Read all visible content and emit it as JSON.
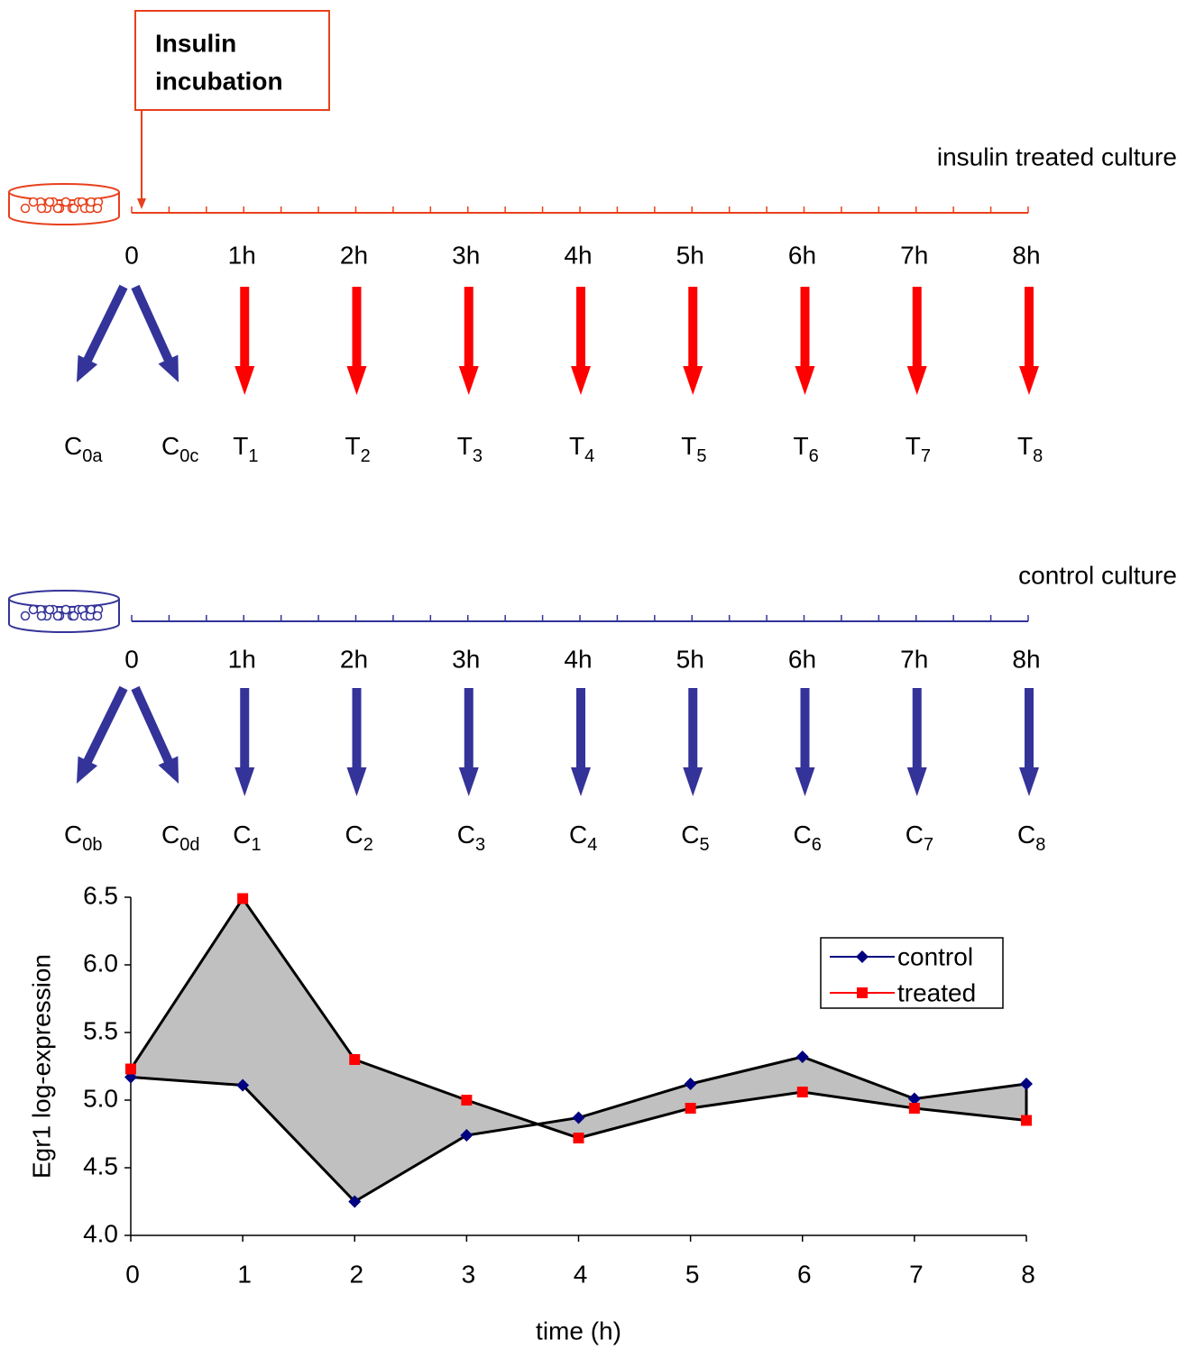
{
  "insulin_box": {
    "lines": [
      "Insulin",
      "incubation"
    ]
  },
  "treated": {
    "label": "insulin treated culture",
    "times": [
      "0",
      "1h",
      "2h",
      "3h",
      "4h",
      "5h",
      "6h",
      "7h",
      "8h"
    ],
    "samples": [
      {
        "base": "C",
        "sub": "0a"
      },
      {
        "base": "C",
        "sub": "0c"
      },
      {
        "base": "T",
        "sub": "1"
      },
      {
        "base": "T",
        "sub": "2"
      },
      {
        "base": "T",
        "sub": "3"
      },
      {
        "base": "T",
        "sub": "4"
      },
      {
        "base": "T",
        "sub": "5"
      },
      {
        "base": "T",
        "sub": "6"
      },
      {
        "base": "T",
        "sub": "7"
      },
      {
        "base": "T",
        "sub": "8"
      }
    ]
  },
  "control": {
    "label": "control culture",
    "times": [
      "0",
      "1h",
      "2h",
      "3h",
      "4h",
      "5h",
      "6h",
      "7h",
      "8h"
    ],
    "samples": [
      {
        "base": "C",
        "sub": "0b"
      },
      {
        "base": "C",
        "sub": "0d"
      },
      {
        "base": "C",
        "sub": "1"
      },
      {
        "base": "C",
        "sub": "2"
      },
      {
        "base": "C",
        "sub": "3"
      },
      {
        "base": "C",
        "sub": "4"
      },
      {
        "base": "C",
        "sub": "5"
      },
      {
        "base": "C",
        "sub": "6"
      },
      {
        "base": "C",
        "sub": "7"
      },
      {
        "base": "C",
        "sub": "8"
      }
    ]
  },
  "chart_data": {
    "type": "line",
    "x_label": "time (h)",
    "y_label": "Egr1 log-expression",
    "x": [
      0,
      1,
      2,
      3,
      4,
      5,
      6,
      7,
      8
    ],
    "series": [
      {
        "name": "control",
        "color": "#000080",
        "marker": "diamond",
        "values": [
          5.17,
          5.11,
          4.25,
          4.74,
          4.87,
          5.12,
          5.32,
          5.01,
          5.12
        ]
      },
      {
        "name": "treated",
        "color": "#ff0000",
        "marker": "square",
        "values": [
          5.23,
          6.49,
          5.3,
          5.0,
          4.72,
          4.94,
          5.06,
          4.94,
          4.85
        ]
      }
    ],
    "xlim": [
      0,
      8
    ],
    "xticks": [
      0,
      1,
      2,
      3,
      4,
      5,
      6,
      7,
      8
    ],
    "ylim": [
      4.0,
      6.5
    ],
    "yticks": [
      {
        "value": 4,
        "label": "4.0"
      },
      4.5,
      {
        "value": 5,
        "label": "5.0"
      },
      5.5,
      {
        "value": 6,
        "label": "6.0"
      },
      6.5
    ],
    "line_color": "#000000",
    "band_color": "#c0c0c0",
    "legend": "upper right"
  }
}
